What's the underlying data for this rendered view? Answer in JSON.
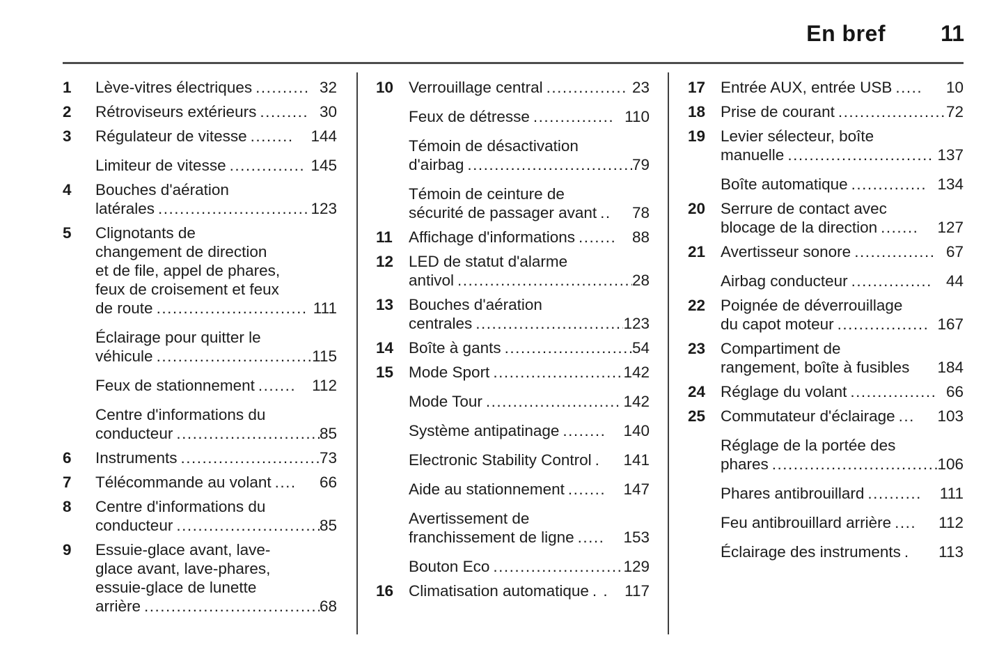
{
  "header": {
    "title": "En bref",
    "page_number": "11"
  },
  "columns": [
    [
      {
        "num": "1",
        "lines": [
          "Lève-vitres électriques"
        ],
        "dots": "..........",
        "page": "32"
      },
      {
        "num": "2",
        "lines": [
          "Rétroviseurs extérieurs"
        ],
        "dots": ".........",
        "page": "30"
      },
      {
        "num": "3",
        "lines": [
          "Régulateur de vitesse"
        ],
        "dots": "........",
        "page": "144"
      },
      {
        "num": "",
        "lines": [
          "Limiteur de vitesse"
        ],
        "dots": "..............",
        "page": "145"
      },
      {
        "num": "4",
        "lines": [
          "Bouches d'aération",
          "latérales"
        ],
        "dots": "..............................",
        "page": "123"
      },
      {
        "num": "5",
        "lines": [
          "Clignotants de",
          "changement de direction",
          "et de file, appel de phares,",
          "feux de croisement et feux",
          "de route"
        ],
        "dots": "............................",
        "page": "111"
      },
      {
        "num": "",
        "lines": [
          "Éclairage pour quitter le",
          "véhicule"
        ],
        "dots": ".............................",
        "page": "115"
      },
      {
        "num": "",
        "lines": [
          "Feux de stationnement"
        ],
        "dots": ".......",
        "page": "112"
      },
      {
        "num": "",
        "lines": [
          "Centre d'informations du",
          "conducteur"
        ],
        "dots": "............................",
        "page": "85"
      },
      {
        "num": "6",
        "lines": [
          "Instruments"
        ],
        "dots": "..........................",
        "page": "73"
      },
      {
        "num": "7",
        "lines": [
          "Télécommande au volant"
        ],
        "dots": "....",
        "page": "66"
      },
      {
        "num": "8",
        "lines": [
          "Centre d'informations du",
          "conducteur"
        ],
        "dots": "............................",
        "page": "85"
      },
      {
        "num": "9",
        "lines": [
          "Essuie-glace avant, lave-",
          "glace avant, lave-phares,",
          "essuie-glace de lunette",
          "arrière"
        ],
        "dots": "...................................",
        "page": "68"
      }
    ],
    [
      {
        "num": "10",
        "lines": [
          "Verrouillage central"
        ],
        "dots": "...............",
        "page": "23"
      },
      {
        "num": "",
        "lines": [
          "Feux de détresse"
        ],
        "dots": "...............",
        "page": "110"
      },
      {
        "num": "",
        "lines": [
          "Témoin de désactivation",
          "d'airbag"
        ],
        "dots": "................................",
        "page": "79"
      },
      {
        "num": "",
        "lines": [
          "Témoin de ceinture de",
          "sécurité de passager avant"
        ],
        "dots": "..",
        "page": "78"
      },
      {
        "num": "11",
        "lines": [
          "Affichage d'informations"
        ],
        "dots": ".......",
        "page": "88"
      },
      {
        "num": "12",
        "lines": [
          "LED de statut d'alarme",
          "antivol"
        ],
        "dots": "...................................",
        "page": "28"
      },
      {
        "num": "13",
        "lines": [
          "Bouches d'aération",
          "centrales"
        ],
        "dots": "............................",
        "page": "123"
      },
      {
        "num": "14",
        "lines": [
          "Boîte à gants"
        ],
        "dots": "........................",
        "page": "54"
      },
      {
        "num": "15",
        "lines": [
          "Mode Sport"
        ],
        "dots": "........................",
        "page": "142"
      },
      {
        "num": "",
        "lines": [
          "Mode Tour"
        ],
        "dots": ".........................",
        "page": "142"
      },
      {
        "num": "",
        "lines": [
          "Système antipatinage"
        ],
        "dots": "........",
        "page": "140"
      },
      {
        "num": "",
        "lines": [
          "Electronic Stability Control"
        ],
        "dots": ".",
        "page": "141"
      },
      {
        "num": "",
        "lines": [
          "Aide au stationnement"
        ],
        "dots": ".......",
        "page": "147"
      },
      {
        "num": "",
        "lines": [
          "Avertissement de",
          "franchissement de ligne"
        ],
        "dots": ".....",
        "page": "153"
      },
      {
        "num": "",
        "lines": [
          "Bouton Eco"
        ],
        "dots": ".........................",
        "page": "129"
      },
      {
        "num": "16",
        "lines": [
          "Climatisation automatique"
        ],
        "dots": ". .",
        "page": "117"
      }
    ],
    [
      {
        "num": "17",
        "lines": [
          "Entrée AUX, entrée USB"
        ],
        "dots": ".....",
        "page": "10"
      },
      {
        "num": "18",
        "lines": [
          "Prise de courant"
        ],
        "dots": "....................",
        "page": "72"
      },
      {
        "num": "19",
        "lines": [
          "Levier sélecteur, boîte",
          "manuelle"
        ],
        "dots": "...........................",
        "page": "137"
      },
      {
        "num": "",
        "lines": [
          "Boîte automatique"
        ],
        "dots": "..............",
        "page": "134"
      },
      {
        "num": "20",
        "lines": [
          "Serrure de contact avec",
          "blocage de la direction"
        ],
        "dots": ".......",
        "page": "127"
      },
      {
        "num": "21",
        "lines": [
          "Avertisseur sonore"
        ],
        "dots": "...............",
        "page": "67"
      },
      {
        "num": "",
        "lines": [
          "Airbag conducteur"
        ],
        "dots": "...............",
        "page": "44"
      },
      {
        "num": "22",
        "lines": [
          "Poignée de déverrouillage",
          "du capot moteur"
        ],
        "dots": ".................",
        "page": "167"
      },
      {
        "num": "23",
        "lines": [
          "Compartiment de",
          "rangement, boîte à fusibles"
        ],
        "dots": "",
        "page": "184"
      },
      {
        "num": "24",
        "lines": [
          "Réglage du volant"
        ],
        "dots": "................",
        "page": "66"
      },
      {
        "num": "25",
        "lines": [
          "Commutateur d'éclairage"
        ],
        "dots": "...",
        "page": "103"
      },
      {
        "num": "",
        "lines": [
          "Réglage de la portée des",
          "phares"
        ],
        "dots": "................................",
        "page": "106"
      },
      {
        "num": "",
        "lines": [
          "Phares antibrouillard"
        ],
        "dots": "..........",
        "page": "111"
      },
      {
        "num": "",
        "lines": [
          "Feu antibrouillard arrière"
        ],
        "dots": "....",
        "page": "112"
      },
      {
        "num": "",
        "lines": [
          "Éclairage des instruments"
        ],
        "dots": ".",
        "page": "113"
      }
    ]
  ]
}
